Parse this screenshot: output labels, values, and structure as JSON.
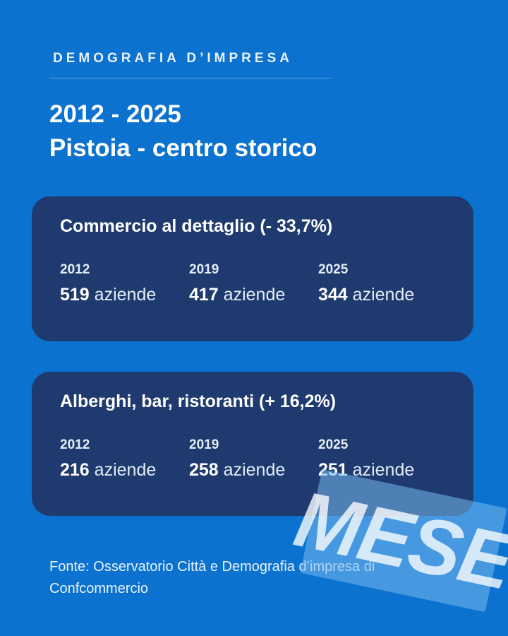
{
  "header": {
    "kicker": "DEMOGRAFIA D’IMPRESA",
    "title_line1": "2012 - 2025",
    "title_line2": "Pistoia - centro storico"
  },
  "cards": [
    {
      "title": "Commercio al dettaglio (- 33,7%)",
      "stats": [
        {
          "year": "2012",
          "value": "519",
          "unit": "aziende"
        },
        {
          "year": "2019",
          "value": "417",
          "unit": "aziende"
        },
        {
          "year": "2025",
          "value": "344",
          "unit": "aziende"
        }
      ]
    },
    {
      "title": "Alberghi, bar, ristoranti (+ 16,2%)",
      "stats": [
        {
          "year": "2012",
          "value": "216",
          "unit": "aziende"
        },
        {
          "year": "2019",
          "value": "258",
          "unit": "aziende"
        },
        {
          "year": "2025",
          "value": "251",
          "unit": "aziende"
        }
      ]
    }
  ],
  "source": "Fonte: Osservatorio Città e Demografia d’impresa di Confcommercio",
  "watermark": "MESE",
  "colors": {
    "background": "#0b72cf",
    "card": "#1e3a6e",
    "text": "#ffffff"
  }
}
